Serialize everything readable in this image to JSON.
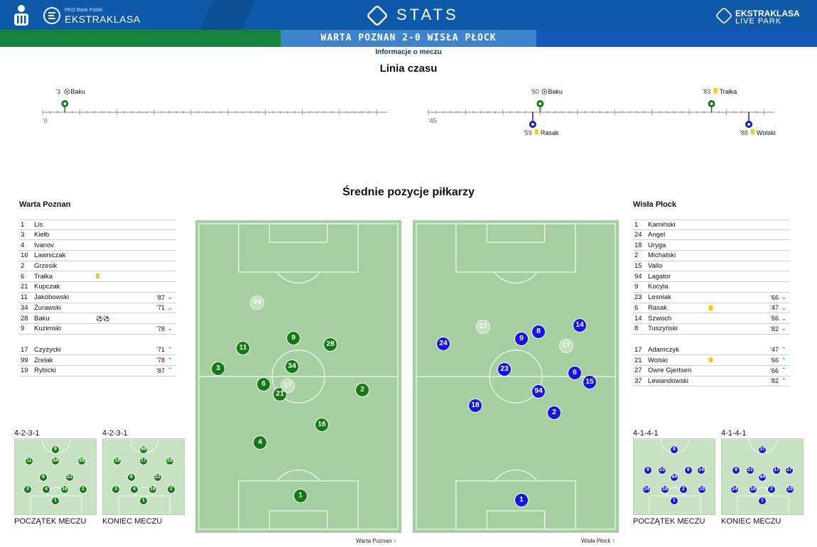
{
  "header": {
    "brand_sub": "PKO Bank Polski",
    "brand": "EKSTRAKLASA",
    "stats_title": "STATS",
    "live_line1": "EKSTRAKLASA",
    "live_line2": "LIVE PARK",
    "match_title": "WARTA POZNAN 2-0 WISŁA PŁOCK",
    "info_link": "Informacje o meczu",
    "colors": {
      "home": "#127a12",
      "away": "#1414e6",
      "banner": "#0f5aa8"
    }
  },
  "timeline": {
    "title": "Linia czasu",
    "first_half_start": "'0",
    "second_half_start": "'45",
    "events": [
      {
        "half": 1,
        "minute": 3,
        "label": "'3",
        "icon": "goal-icon",
        "player": "Baku",
        "team": "home"
      },
      {
        "half": 2,
        "minute": 60,
        "label": "'60",
        "icon": "goal-icon",
        "player": "Baku",
        "team": "home"
      },
      {
        "half": 2,
        "minute": 83,
        "label": "'83",
        "icon": "yellow-card-icon",
        "player": "Trałka",
        "team": "home"
      },
      {
        "half": 2,
        "minute": 59,
        "label": "'59",
        "icon": "yellow-card-icon",
        "player": "Rasak",
        "team": "away"
      },
      {
        "half": 2,
        "minute": 88,
        "label": "'88",
        "icon": "yellow-card-icon",
        "player": "Wolski",
        "team": "away"
      }
    ]
  },
  "positions": {
    "title": "Średnie pozycje piłkarzy",
    "home_caption": "Warta Poznan",
    "away_caption": "Wisła Płock"
  },
  "home": {
    "name": "Warta Poznan",
    "starters": [
      {
        "no": "1",
        "name": "Lis",
        "card": false,
        "sub": "",
        "dir": ""
      },
      {
        "no": "3",
        "name": "Kiełb",
        "card": false,
        "sub": "",
        "dir": ""
      },
      {
        "no": "4",
        "name": "Ivanov",
        "card": false,
        "sub": "",
        "dir": ""
      },
      {
        "no": "16",
        "name": "Lawniczak",
        "card": false,
        "sub": "",
        "dir": ""
      },
      {
        "no": "2",
        "name": "Grzesik",
        "card": false,
        "sub": "",
        "dir": ""
      },
      {
        "no": "6",
        "name": "Trałka",
        "card": true,
        "sub": "",
        "dir": ""
      },
      {
        "no": "21",
        "name": "Kupczak",
        "card": false,
        "sub": "",
        "dir": ""
      },
      {
        "no": "11",
        "name": "Jakóbowski",
        "card": false,
        "sub": "'87",
        "dir": "out"
      },
      {
        "no": "34",
        "name": "Żurawski",
        "card": false,
        "sub": "'71",
        "dir": "out"
      },
      {
        "no": "28",
        "name": "Baku",
        "card": false,
        "sub": "",
        "dir": "",
        "goals": 2
      },
      {
        "no": "9",
        "name": "Kuzimski",
        "card": false,
        "sub": "'78",
        "dir": "out"
      }
    ],
    "subs": [
      {
        "no": "17",
        "name": "Czyżycki",
        "sub": "'71",
        "dir": "in"
      },
      {
        "no": "99",
        "name": "Zrelak",
        "sub": "'78",
        "dir": "in"
      },
      {
        "no": "19",
        "name": "Rybicki",
        "sub": "'87",
        "dir": "in"
      }
    ],
    "start_formation": "4-2-3-1",
    "end_formation": "4-2-3-1",
    "start_caption": "POCZĄTEK MECZU",
    "end_caption": "KONIEC MECZU"
  },
  "away": {
    "name": "Wisła Płock",
    "starters": [
      {
        "no": "1",
        "name": "Kamiński",
        "card": false,
        "sub": "",
        "dir": ""
      },
      {
        "no": "24",
        "name": "Angel",
        "card": false,
        "sub": "",
        "dir": ""
      },
      {
        "no": "18",
        "name": "Uryga",
        "card": false,
        "sub": "",
        "dir": ""
      },
      {
        "no": "2",
        "name": "Michalski",
        "card": false,
        "sub": "",
        "dir": ""
      },
      {
        "no": "15",
        "name": "Vallo",
        "card": false,
        "sub": "",
        "dir": ""
      },
      {
        "no": "94",
        "name": "Lagator",
        "card": false,
        "sub": "",
        "dir": ""
      },
      {
        "no": "9",
        "name": "Kocyla",
        "card": false,
        "sub": "",
        "dir": ""
      },
      {
        "no": "23",
        "name": "Lesniak",
        "card": false,
        "sub": "'66",
        "dir": "out"
      },
      {
        "no": "6",
        "name": "Rasak",
        "card": true,
        "sub": "'47",
        "dir": "out"
      },
      {
        "no": "14",
        "name": "Szwoch",
        "card": false,
        "sub": "'66",
        "dir": "out"
      },
      {
        "no": "8",
        "name": "Tuszyński",
        "card": false,
        "sub": "'82",
        "dir": "out"
      }
    ],
    "subs": [
      {
        "no": "17",
        "name": "Adamczyk",
        "card": false,
        "sub": "'47",
        "dir": "in"
      },
      {
        "no": "21",
        "name": "Wolski",
        "card": true,
        "sub": "'66",
        "dir": "in"
      },
      {
        "no": "27",
        "name": "Owre Gjertsen",
        "card": false,
        "sub": "'66",
        "dir": "in"
      },
      {
        "no": "37",
        "name": "Lewandowski",
        "card": false,
        "sub": "'82",
        "dir": "in"
      }
    ],
    "start_formation": "4-1-4-1",
    "end_formation": "4-1-4-1",
    "start_caption": "POCZĄTEK MECZU",
    "end_caption": "KONIEC MECZU"
  }
}
